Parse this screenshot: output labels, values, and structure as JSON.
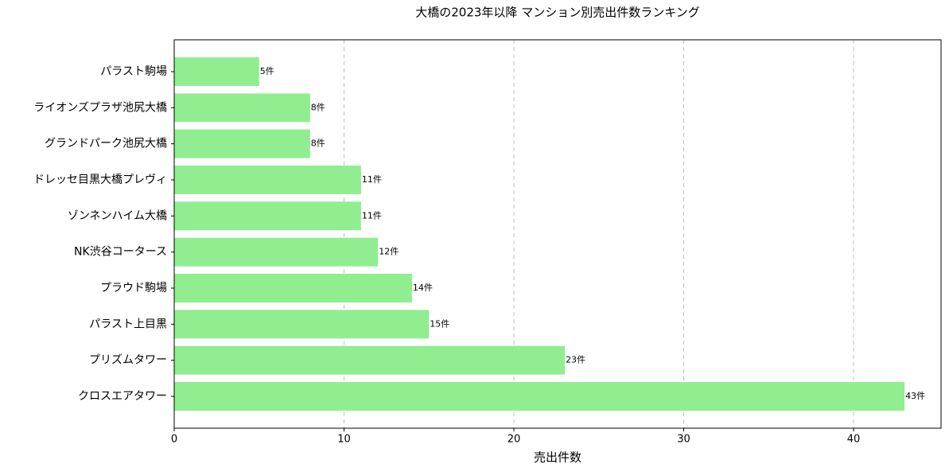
{
  "chart_data": {
    "type": "barh",
    "title": "大橋の2023年以降 マンション別売出件数ランキング",
    "xlabel": "売出件数",
    "categories": [
      "パラスト駒場",
      "ライオンズプラザ池尻大橋",
      "グランドパーク池尻大橋",
      "ドレッセ目黒大橋プレヴィ",
      "ゾンネンハイム大橋",
      "NK渋谷コータース",
      "プラウド駒場",
      "パラスト上目黒",
      "プリズムタワー",
      "クロスエアタワー"
    ],
    "values": [
      5,
      8,
      8,
      11,
      11,
      12,
      14,
      15,
      23,
      43
    ],
    "value_labels": [
      "5件",
      "8件",
      "8件",
      "11件",
      "11件",
      "12件",
      "14件",
      "15件",
      "23件",
      "43件"
    ],
    "color": "#90ee90",
    "xlim": [
      0,
      45.15
    ],
    "xticks": [
      0,
      10,
      20,
      30,
      40
    ],
    "grid": true
  }
}
